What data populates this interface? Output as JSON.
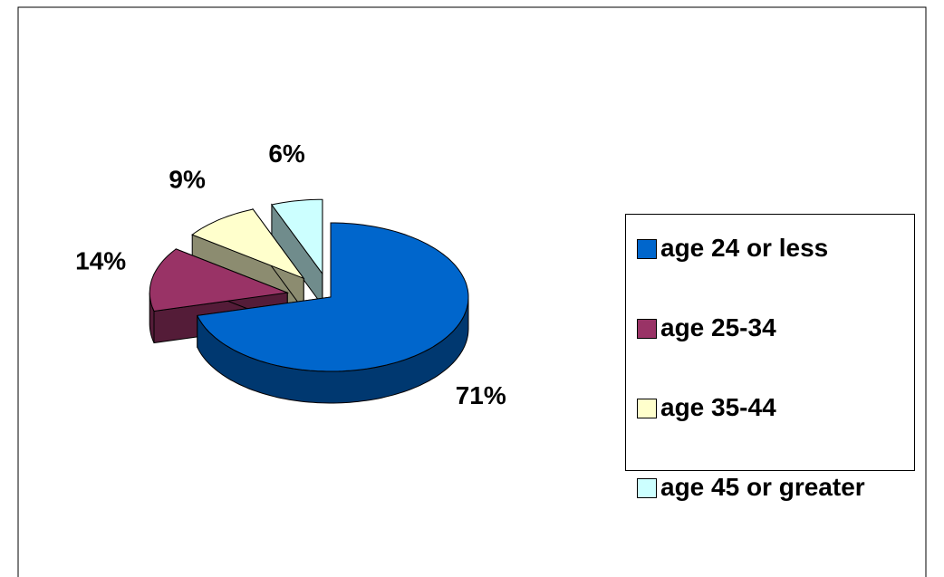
{
  "chart_data": {
    "type": "pie",
    "categories": [
      "age 24 or less",
      "age 25-34",
      "age 35-44",
      "age 45 or greater"
    ],
    "values": [
      71,
      14,
      9,
      6
    ],
    "value_labels": [
      "71%",
      "14%",
      "9%",
      "6%"
    ],
    "colors": [
      "#0066cc",
      "#993366",
      "#ffffcc",
      "#ccffff"
    ],
    "legend": "right"
  }
}
